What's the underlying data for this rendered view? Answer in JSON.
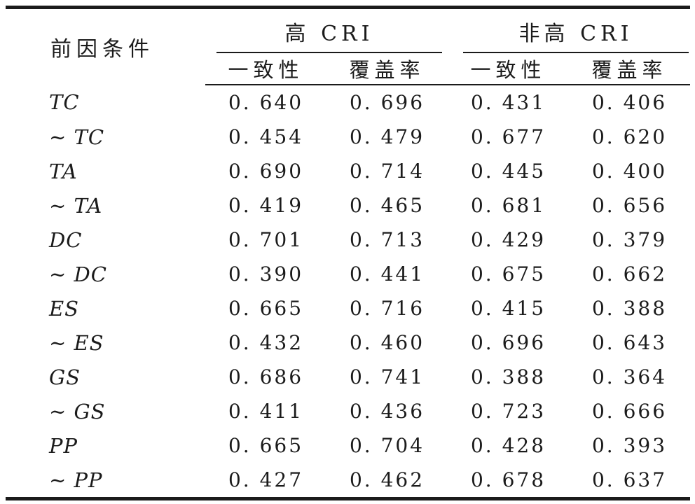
{
  "table": {
    "row_header": "前因条件",
    "groups": [
      {
        "label": "高 CRI",
        "columns": [
          "一致性",
          "覆盖率"
        ]
      },
      {
        "label": "非高 CRI",
        "columns": [
          "一致性",
          "覆盖率"
        ]
      }
    ],
    "rows": [
      {
        "condition": "TC",
        "values": [
          "0. 640",
          "0. 696",
          "0. 431",
          "0. 406"
        ]
      },
      {
        "condition": "∼ TC",
        "values": [
          "0. 454",
          "0. 479",
          "0. 677",
          "0. 620"
        ]
      },
      {
        "condition": "TA",
        "values": [
          "0. 690",
          "0. 714",
          "0. 445",
          "0. 400"
        ]
      },
      {
        "condition": "∼ TA",
        "values": [
          "0. 419",
          "0. 465",
          "0. 681",
          "0. 656"
        ]
      },
      {
        "condition": "DC",
        "values": [
          "0. 701",
          "0. 713",
          "0. 429",
          "0. 379"
        ]
      },
      {
        "condition": "∼ DC",
        "values": [
          "0. 390",
          "0. 441",
          "0. 675",
          "0. 662"
        ]
      },
      {
        "condition": "ES",
        "values": [
          "0. 665",
          "0. 716",
          "0. 415",
          "0. 388"
        ]
      },
      {
        "condition": "∼ ES",
        "values": [
          "0. 432",
          "0. 460",
          "0. 696",
          "0. 643"
        ]
      },
      {
        "condition": "GS",
        "values": [
          "0. 686",
          "0. 741",
          "0. 388",
          "0. 364"
        ]
      },
      {
        "condition": "∼ GS",
        "values": [
          "0. 411",
          "0. 436",
          "0. 723",
          "0. 666"
        ]
      },
      {
        "condition": "PP",
        "values": [
          "0. 665",
          "0. 704",
          "0. 428",
          "0. 393"
        ]
      },
      {
        "condition": "∼ PP",
        "values": [
          "0. 427",
          "0. 462",
          "0. 678",
          "0. 637"
        ]
      }
    ],
    "colors": {
      "ink": "#1b1b1b",
      "background": "#ffffff"
    }
  }
}
